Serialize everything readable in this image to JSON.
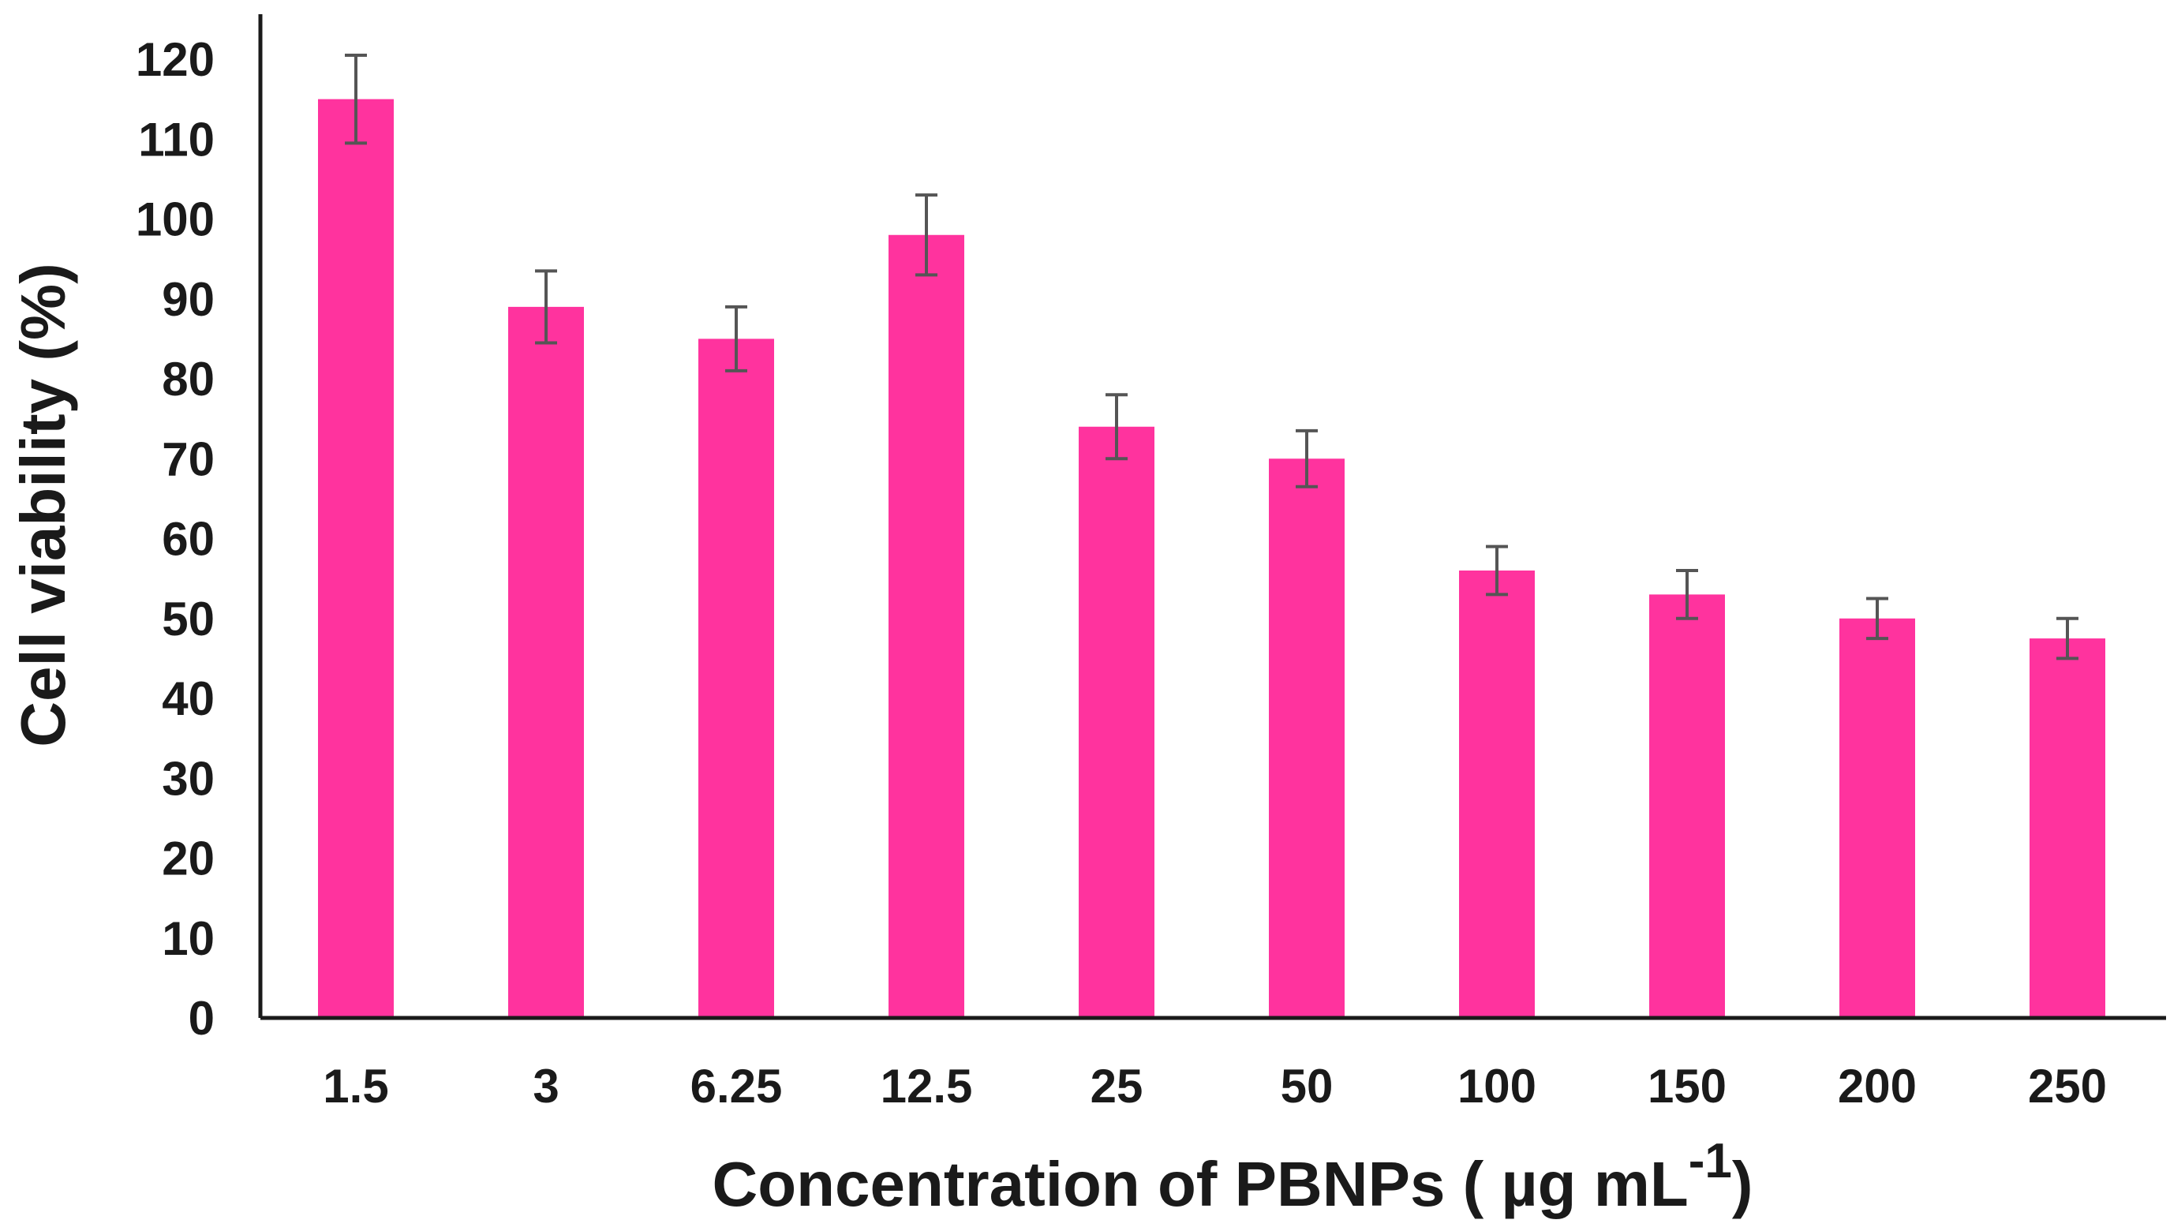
{
  "chart_data": {
    "type": "bar",
    "title": "",
    "categories": [
      "1.5",
      "3",
      "6.25",
      "12.5",
      "25",
      "50",
      "100",
      "150",
      "200",
      "250"
    ],
    "values": [
      115,
      89,
      85,
      98,
      74,
      70,
      56,
      53,
      50,
      47.5
    ],
    "errors": [
      5.5,
      4.5,
      4,
      5,
      4,
      3.5,
      3,
      3,
      2.5,
      2.5
    ],
    "xlabel": {
      "main": "Concentration of PBNPs ( µg mL",
      "superscript": "-1",
      "closing": ")"
    },
    "ylabel": "Cell viability (%)",
    "ylim": [
      0,
      120
    ],
    "yticks": [
      0,
      10,
      20,
      30,
      40,
      50,
      60,
      70,
      80,
      90,
      100,
      110,
      120
    ],
    "grid": false,
    "legend": "none",
    "colors": {
      "bar": "#ff339e",
      "error_bar": "#555555",
      "axis": "#1a1a1a"
    }
  }
}
